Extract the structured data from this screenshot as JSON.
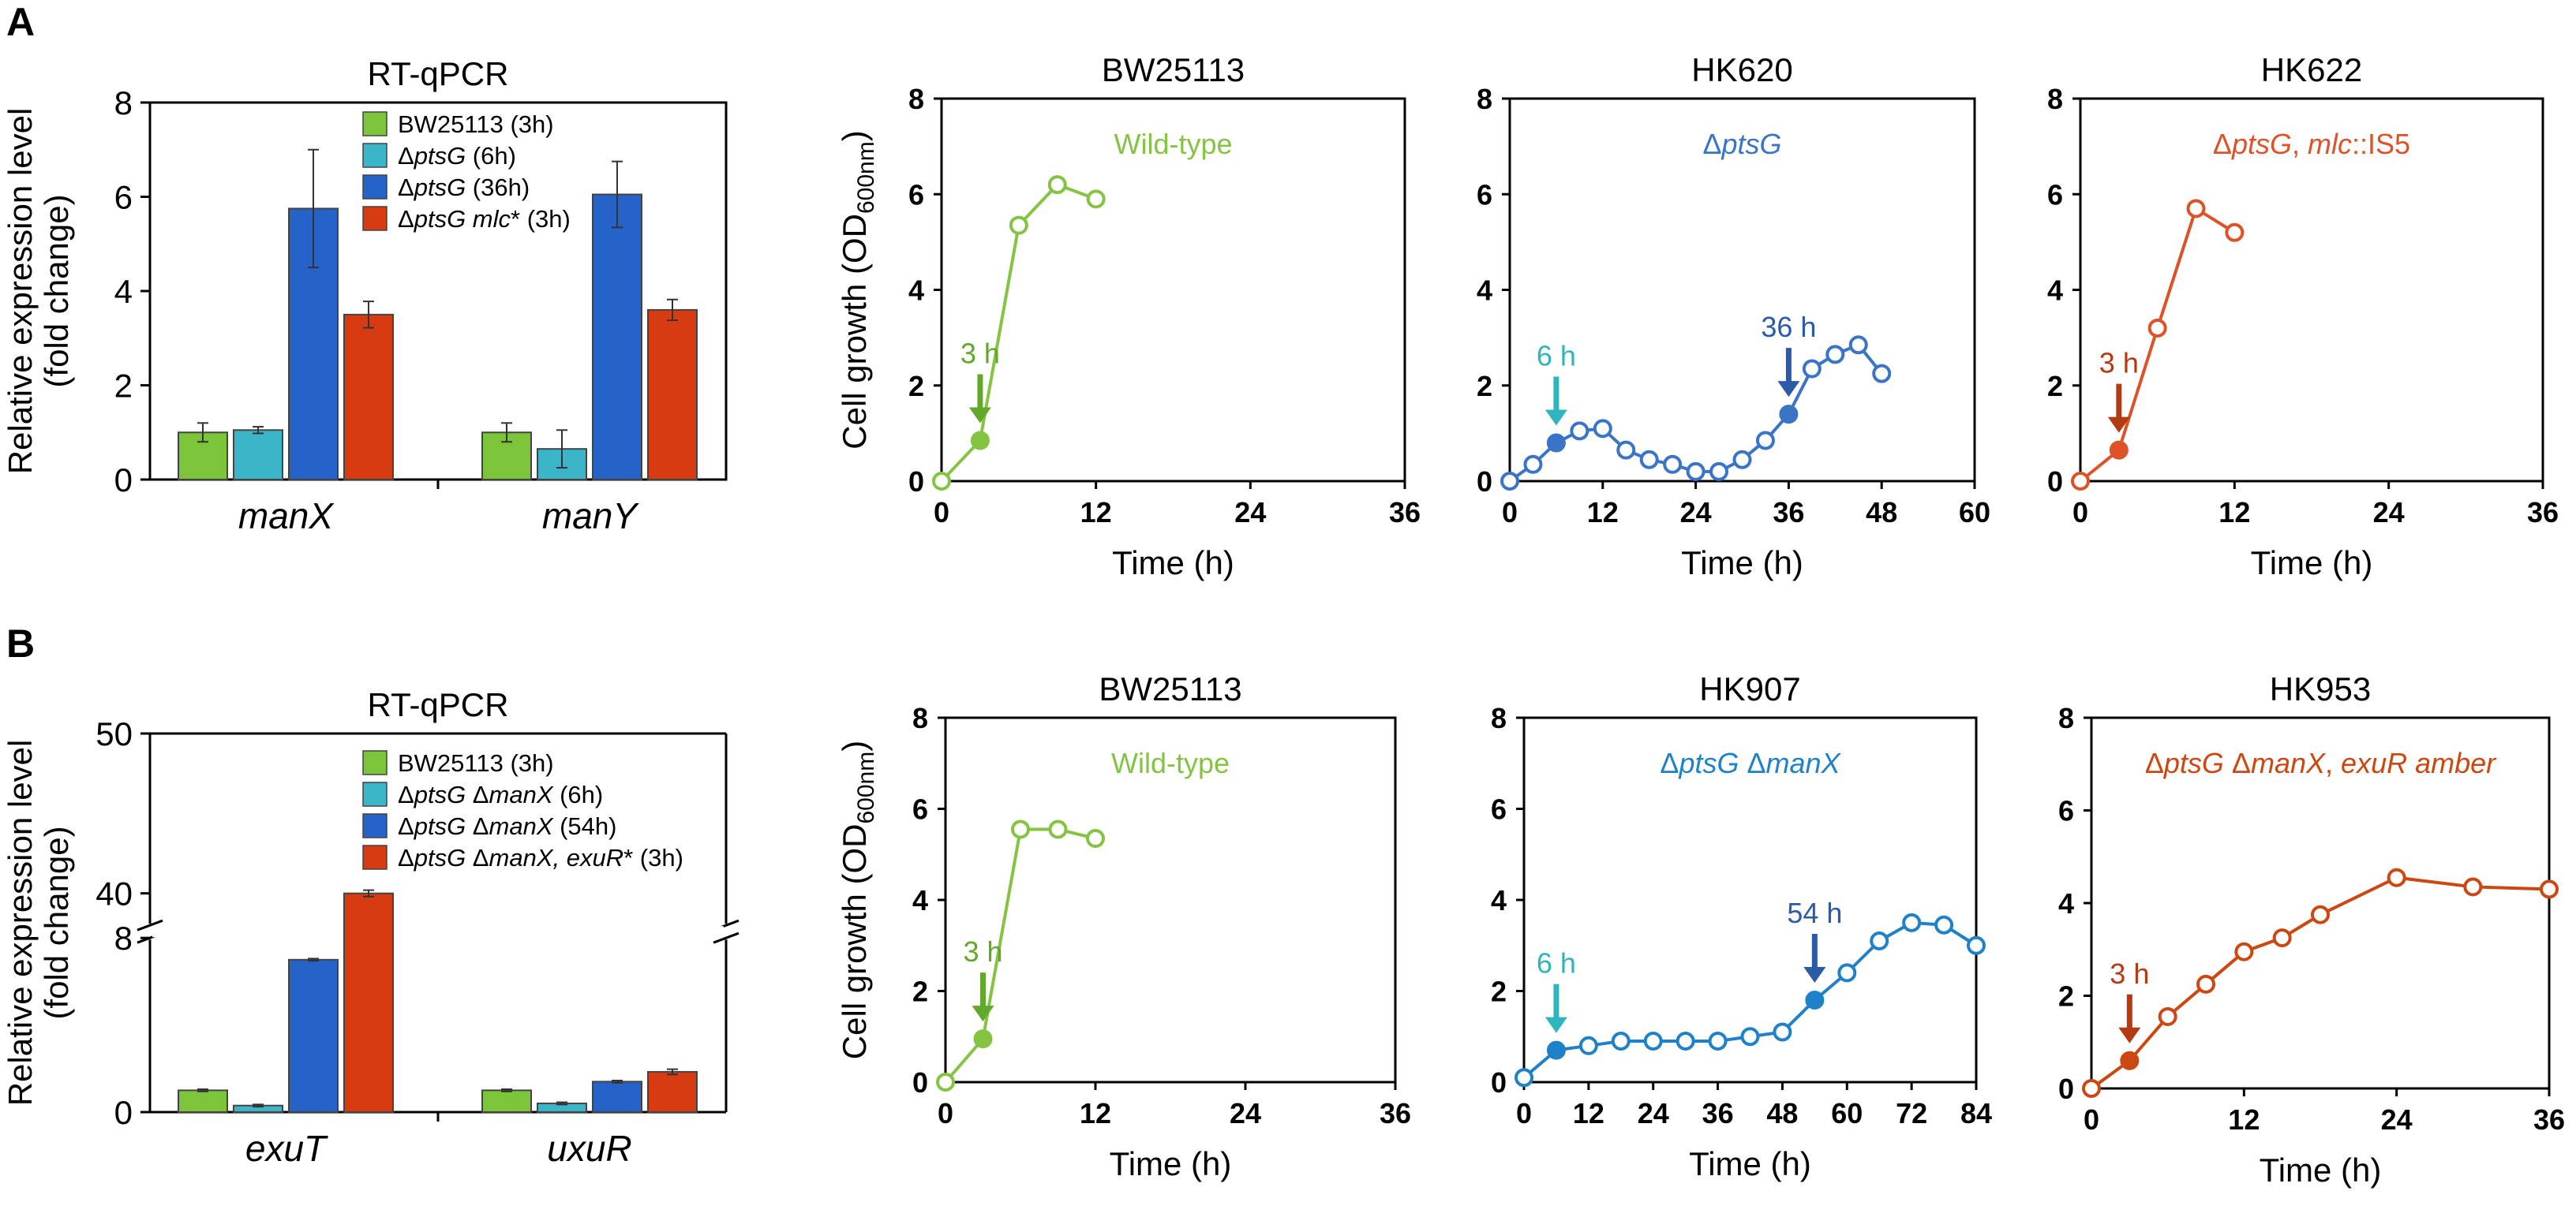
{
  "panel_labels": [
    "A",
    "B"
  ],
  "axis_titles": {
    "rtqpcr_y_line1": "Relative expression level",
    "rtqpcr_y_line2": "(fold change)",
    "growth_y_main": "Cell growth (OD",
    "growth_y_sub": "600nm",
    "growth_y_close": ")",
    "growth_x": "Time (h)"
  },
  "chart_data": [
    {
      "id": "A-rtqpcr",
      "type": "bar",
      "panel": "A",
      "title": "RT-qPCR",
      "xlabel": "",
      "ylabel": "Relative expression level (fold change)",
      "ylim": [
        0,
        8
      ],
      "yticks": [
        0,
        2,
        4,
        6,
        8
      ],
      "categories": [
        "manX",
        "manY"
      ],
      "legend_position": "top-right",
      "series": [
        {
          "name": "BW25113 (3h)",
          "legend": [
            {
              "t": "BW25113 (3h)",
              "i": false
            }
          ],
          "color": "#7cc53a",
          "values": [
            1.0,
            1.0
          ],
          "errors": [
            0.2,
            0.2
          ]
        },
        {
          "name": "ΔptsG (6h)",
          "legend": [
            {
              "t": "Δ",
              "i": false
            },
            {
              "t": "ptsG",
              "i": true
            },
            {
              "t": " (6h)",
              "i": false
            }
          ],
          "color": "#3bb6c9",
          "values": [
            1.05,
            0.65
          ],
          "errors": [
            0.07,
            0.4
          ]
        },
        {
          "name": "ΔptsG (36h)",
          "legend": [
            {
              "t": "Δ",
              "i": false
            },
            {
              "t": "ptsG",
              "i": true
            },
            {
              "t": " (36h)",
              "i": false
            }
          ],
          "color": "#2563c9",
          "values": [
            5.75,
            6.05
          ],
          "errors": [
            1.25,
            0.7
          ]
        },
        {
          "name": "ΔptsG mlc* (3h)",
          "legend": [
            {
              "t": "Δ",
              "i": false
            },
            {
              "t": "ptsG mlc",
              "i": true
            },
            {
              "t": "* (3h)",
              "i": false
            }
          ],
          "color": "#d73b11",
          "values": [
            3.5,
            3.6
          ],
          "errors": [
            0.28,
            0.22
          ]
        }
      ]
    },
    {
      "id": "A-bw25113",
      "type": "line",
      "panel": "A",
      "title": "BW25113",
      "annotation": [
        {
          "t": "Wild-type",
          "i": false
        }
      ],
      "color": "#84c442",
      "xlabel": "Time (h)",
      "ylabel": "Cell growth (OD600nm)",
      "xlim": [
        0,
        36
      ],
      "xticks": [
        0,
        12,
        24,
        36
      ],
      "ylim": [
        0,
        8
      ],
      "yticks": [
        0,
        2,
        4,
        6,
        8
      ],
      "x": [
        0,
        3,
        6,
        9,
        12
      ],
      "y": [
        0.0,
        0.85,
        5.35,
        6.2,
        5.9
      ],
      "filled": [
        3
      ],
      "arrows": [
        {
          "x": 3,
          "label": "3 h",
          "color": "#62a82b"
        }
      ]
    },
    {
      "id": "A-hk620",
      "type": "line",
      "panel": "A",
      "title": "HK620",
      "annotation": [
        {
          "t": "Δ",
          "i": false
        },
        {
          "t": "ptsG",
          "i": true
        }
      ],
      "color": "#3a74c6",
      "xlabel": "Time (h)",
      "ylabel": "Cell growth (OD600nm)",
      "xlim": [
        0,
        60
      ],
      "xticks": [
        0,
        12,
        24,
        36,
        48,
        60
      ],
      "ylim": [
        0,
        8
      ],
      "yticks": [
        0,
        2,
        4,
        6,
        8
      ],
      "x": [
        0,
        3,
        6,
        9,
        12,
        15,
        18,
        21,
        24,
        27,
        30,
        33,
        36,
        39,
        42,
        45,
        48
      ],
      "y": [
        0.0,
        0.35,
        0.8,
        1.05,
        1.1,
        0.65,
        0.45,
        0.35,
        0.2,
        0.2,
        0.45,
        0.85,
        1.4,
        2.35,
        2.65,
        2.85,
        2.25
      ],
      "filled": [
        6,
        36
      ],
      "arrows": [
        {
          "x": 6,
          "label": "6 h",
          "color": "#2fb5bd"
        },
        {
          "x": 36,
          "label": "36 h",
          "color": "#2a5aa8"
        }
      ]
    },
    {
      "id": "A-hk622",
      "type": "line",
      "panel": "A",
      "title": "HK622",
      "annotation": [
        {
          "t": "Δ",
          "i": false
        },
        {
          "t": "ptsG",
          "i": true
        },
        {
          "t": ", ",
          "i": false
        },
        {
          "t": "mlc",
          "i": true
        },
        {
          "t": "::IS5",
          "i": false
        }
      ],
      "color": "#dd5227",
      "xlabel": "Time (h)",
      "ylabel": "Cell growth (OD600nm)",
      "xlim": [
        0,
        36
      ],
      "xticks": [
        0,
        12,
        24,
        36
      ],
      "ylim": [
        0,
        8
      ],
      "yticks": [
        0,
        2,
        4,
        6,
        8
      ],
      "x": [
        0,
        3,
        6,
        9,
        12
      ],
      "y": [
        0.0,
        0.65,
        3.2,
        5.7,
        5.2
      ],
      "filled": [
        3
      ],
      "arrows": [
        {
          "x": 3,
          "label": "3 h",
          "color": "#b33a12"
        }
      ]
    },
    {
      "id": "B-rtqpcr",
      "type": "bar",
      "panel": "B",
      "title": "RT-qPCR",
      "xlabel": "",
      "ylabel": "Relative expression level (fold change)",
      "broken_axis": {
        "lower": [
          0,
          8
        ],
        "upper": [
          38,
          50
        ]
      },
      "yticks": [
        0,
        8,
        40,
        50
      ],
      "categories": [
        "exuT",
        "uxuR"
      ],
      "legend_position": "top-right",
      "series": [
        {
          "name": "BW25113 (3h)",
          "legend": [
            {
              "t": "BW25113 (3h)",
              "i": false
            }
          ],
          "color": "#7cc53a",
          "values": [
            1.0,
            1.0
          ],
          "errors": [
            0.05,
            0.05
          ]
        },
        {
          "name": "ΔptsG ΔmanX (6h)",
          "legend": [
            {
              "t": "Δ",
              "i": false
            },
            {
              "t": "ptsG",
              "i": true
            },
            {
              "t": " Δ",
              "i": false
            },
            {
              "t": "manX",
              "i": true
            },
            {
              "t": " (6h)",
              "i": false
            }
          ],
          "color": "#3bb6c9",
          "values": [
            0.3,
            0.4
          ],
          "errors": [
            0.05,
            0.05
          ]
        },
        {
          "name": "ΔptsG ΔmanX (54h)",
          "legend": [
            {
              "t": "Δ",
              "i": false
            },
            {
              "t": "ptsG",
              "i": true
            },
            {
              "t": " Δ",
              "i": false
            },
            {
              "t": "manX",
              "i": true
            },
            {
              "t": " (54h)",
              "i": false
            }
          ],
          "color": "#2563c9",
          "values": [
            7.0,
            1.4
          ],
          "errors": [
            0.05,
            0.05
          ]
        },
        {
          "name": "ΔptsG ΔmanX, exuR* (3h)",
          "legend": [
            {
              "t": "Δ",
              "i": false
            },
            {
              "t": "ptsG",
              "i": true
            },
            {
              "t": " Δ",
              "i": false
            },
            {
              "t": "manX, exuR",
              "i": true
            },
            {
              "t": "* (3h)",
              "i": false
            }
          ],
          "color": "#d73b11",
          "values": [
            40.0,
            1.85
          ],
          "errors": [
            0.2,
            0.12
          ]
        }
      ]
    },
    {
      "id": "B-bw25113",
      "type": "line",
      "panel": "B",
      "title": "BW25113",
      "annotation": [
        {
          "t": "Wild-type",
          "i": false
        }
      ],
      "color": "#84c442",
      "xlabel": "Time (h)",
      "ylabel": "Cell growth (OD600nm)",
      "xlim": [
        0,
        36
      ],
      "xticks": [
        0,
        12,
        24,
        36
      ],
      "ylim": [
        0,
        8
      ],
      "yticks": [
        0,
        2,
        4,
        6,
        8
      ],
      "x": [
        0,
        3,
        6,
        9,
        12
      ],
      "y": [
        0.0,
        0.95,
        5.55,
        5.55,
        5.35
      ],
      "filled": [
        3
      ],
      "arrows": [
        {
          "x": 3,
          "label": "3 h",
          "color": "#62a82b"
        }
      ]
    },
    {
      "id": "B-hk907",
      "type": "line",
      "panel": "B",
      "title": "HK907",
      "annotation": [
        {
          "t": "Δ",
          "i": false
        },
        {
          "t": "ptsG",
          "i": true
        },
        {
          "t": " Δ",
          "i": false
        },
        {
          "t": "manX",
          "i": true
        }
      ],
      "color": "#1f82c8",
      "xlabel": "Time (h)",
      "ylabel": "Cell growth (OD600nm)",
      "xlim": [
        0,
        84
      ],
      "xticks": [
        0,
        12,
        24,
        36,
        48,
        60,
        72,
        84
      ],
      "ylim": [
        0,
        8
      ],
      "yticks": [
        0,
        2,
        4,
        6,
        8
      ],
      "x": [
        0,
        6,
        12,
        18,
        24,
        30,
        36,
        42,
        48,
        54,
        60,
        66,
        72,
        78,
        84
      ],
      "y": [
        0.1,
        0.7,
        0.8,
        0.9,
        0.9,
        0.9,
        0.9,
        1.0,
        1.1,
        1.8,
        2.4,
        3.1,
        3.5,
        3.45,
        3.0
      ],
      "filled": [
        6,
        54
      ],
      "arrows": [
        {
          "x": 6,
          "label": "6 h",
          "color": "#2fb5bd"
        },
        {
          "x": 54,
          "label": "54 h",
          "color": "#2a5aa8"
        }
      ]
    },
    {
      "id": "B-hk953",
      "type": "line",
      "panel": "B",
      "title": "HK953",
      "annotation": [
        {
          "t": "Δ",
          "i": false
        },
        {
          "t": "ptsG",
          "i": true
        },
        {
          "t": " Δ",
          "i": false
        },
        {
          "t": "manX",
          "i": true
        },
        {
          "t": ", ",
          "i": false
        },
        {
          "t": "exuR amber",
          "i": true
        }
      ],
      "color": "#cc4712",
      "xlabel": "Time (h)",
      "ylabel": "Cell growth (OD600nm)",
      "xlim": [
        0,
        36
      ],
      "xticks": [
        0,
        12,
        24,
        36
      ],
      "ylim": [
        0,
        8
      ],
      "yticks": [
        0,
        2,
        4,
        6,
        8
      ],
      "x": [
        0,
        3,
        6,
        9,
        12,
        15,
        18,
        24,
        30,
        36
      ],
      "y": [
        0.0,
        0.6,
        1.55,
        2.25,
        2.95,
        3.25,
        3.75,
        4.55,
        4.35,
        4.3
      ],
      "filled": [
        3
      ],
      "arrows": [
        {
          "x": 3,
          "label": "3 h",
          "color": "#b33a12"
        }
      ]
    }
  ]
}
